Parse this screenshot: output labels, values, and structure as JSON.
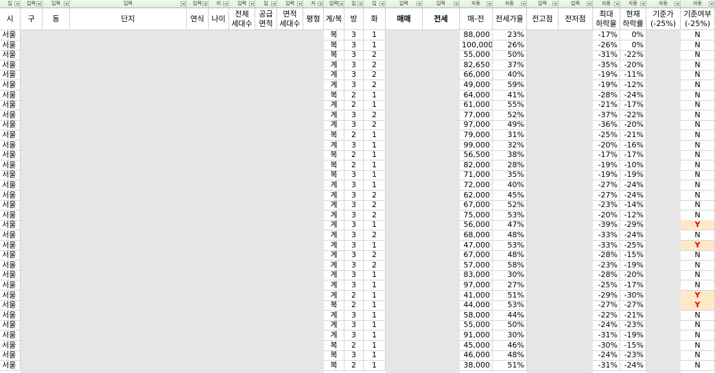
{
  "filter_row": [
    "입",
    "입력",
    "입력",
    "입력",
    "입력",
    "자",
    "입력",
    "입",
    "입력",
    "자",
    "입력",
    "입",
    "입",
    "입력",
    "입력",
    "자동",
    "자동",
    "입력",
    "입력",
    "자동",
    "자동",
    "자동",
    "자동"
  ],
  "header": [
    "시",
    "구",
    "동",
    "단지",
    "연식",
    "나이",
    "전체\n세대수",
    "공급\n면적",
    "면적\n세대수",
    "평형",
    "계/복",
    "방",
    "화",
    "매매",
    "전세",
    "매-전",
    "전세가율",
    "전고점",
    "전저점",
    "최대\n하락율",
    "현재\n하락률",
    "기준가\n(-25%)",
    "기준여부\n(-25%)"
  ],
  "rows": [
    [
      "서울",
      "복",
      "3",
      "1",
      "88,000",
      "23%",
      "-17%",
      "0%",
      "N"
    ],
    [
      "서울",
      "복",
      "3",
      "1",
      "100,000",
      "26%",
      "-26%",
      "0%",
      "N"
    ],
    [
      "서울",
      "복",
      "3",
      "2",
      "55,000",
      "50%",
      "-31%",
      "-22%",
      "N"
    ],
    [
      "서울",
      "계",
      "3",
      "2",
      "82,650",
      "37%",
      "-35%",
      "-20%",
      "N"
    ],
    [
      "서울",
      "계",
      "3",
      "2",
      "66,000",
      "40%",
      "-19%",
      "-11%",
      "N"
    ],
    [
      "서울",
      "계",
      "3",
      "2",
      "49,000",
      "59%",
      "-19%",
      "-12%",
      "N"
    ],
    [
      "서울",
      "복",
      "2",
      "1",
      "64,000",
      "41%",
      "-28%",
      "-24%",
      "N"
    ],
    [
      "서울",
      "계",
      "2",
      "1",
      "61,000",
      "55%",
      "-21%",
      "-17%",
      "N"
    ],
    [
      "서울",
      "계",
      "3",
      "2",
      "77,000",
      "52%",
      "-37%",
      "-22%",
      "N"
    ],
    [
      "서울",
      "계",
      "3",
      "2",
      "97,000",
      "49%",
      "-36%",
      "-20%",
      "N"
    ],
    [
      "서울",
      "복",
      "2",
      "1",
      "79,000",
      "31%",
      "-25%",
      "-21%",
      "N"
    ],
    [
      "서울",
      "계",
      "3",
      "1",
      "99,000",
      "32%",
      "-20%",
      "-16%",
      "N"
    ],
    [
      "서울",
      "복",
      "2",
      "1",
      "56,500",
      "38%",
      "-17%",
      "-17%",
      "N"
    ],
    [
      "서울",
      "복",
      "2",
      "1",
      "82,000",
      "28%",
      "-19%",
      "-10%",
      "N"
    ],
    [
      "서울",
      "복",
      "3",
      "1",
      "71,000",
      "35%",
      "-19%",
      "-19%",
      "N"
    ],
    [
      "서울",
      "계",
      "3",
      "1",
      "72,000",
      "40%",
      "-27%",
      "-24%",
      "N"
    ],
    [
      "서울",
      "계",
      "3",
      "2",
      "62,000",
      "45%",
      "-27%",
      "-24%",
      "N"
    ],
    [
      "서울",
      "계",
      "3",
      "2",
      "67,000",
      "52%",
      "-23%",
      "-14%",
      "N"
    ],
    [
      "서울",
      "계",
      "3",
      "2",
      "75,000",
      "53%",
      "-20%",
      "-12%",
      "N"
    ],
    [
      "서울",
      "계",
      "3",
      "1",
      "56,000",
      "47%",
      "-39%",
      "-29%",
      "Y"
    ],
    [
      "서울",
      "계",
      "3",
      "2",
      "68,000",
      "48%",
      "-33%",
      "-24%",
      "N"
    ],
    [
      "서울",
      "계",
      "3",
      "1",
      "47,000",
      "53%",
      "-33%",
      "-25%",
      "Y"
    ],
    [
      "서울",
      "계",
      "3",
      "2",
      "67,000",
      "48%",
      "-28%",
      "-15%",
      "N"
    ],
    [
      "서울",
      "계",
      "3",
      "2",
      "57,000",
      "58%",
      "-23%",
      "-19%",
      "N"
    ],
    [
      "서울",
      "계",
      "3",
      "1",
      "83,000",
      "30%",
      "-28%",
      "-20%",
      "N"
    ],
    [
      "서울",
      "계",
      "3",
      "1",
      "97,000",
      "27%",
      "-25%",
      "-17%",
      "N"
    ],
    [
      "서울",
      "계",
      "2",
      "1",
      "41,000",
      "51%",
      "-29%",
      "-30%",
      "Y"
    ],
    [
      "서울",
      "복",
      "2",
      "1",
      "44,000",
      "53%",
      "-27%",
      "-27%",
      "Y"
    ],
    [
      "서울",
      "계",
      "3",
      "1",
      "58,000",
      "44%",
      "-22%",
      "-21%",
      "N"
    ],
    [
      "서울",
      "계",
      "3",
      "1",
      "55,000",
      "50%",
      "-24%",
      "-23%",
      "N"
    ],
    [
      "서울",
      "계",
      "3",
      "1",
      "91,000",
      "30%",
      "-31%",
      "-19%",
      "N"
    ],
    [
      "서울",
      "복",
      "2",
      "1",
      "45,000",
      "46%",
      "-30%",
      "-15%",
      "N"
    ],
    [
      "서울",
      "복",
      "3",
      "1",
      "46,000",
      "48%",
      "-24%",
      "-23%",
      "N"
    ],
    [
      "서울",
      "복",
      "2",
      "1",
      "38,000",
      "51%",
      "-31%",
      "-24%",
      "N"
    ]
  ]
}
